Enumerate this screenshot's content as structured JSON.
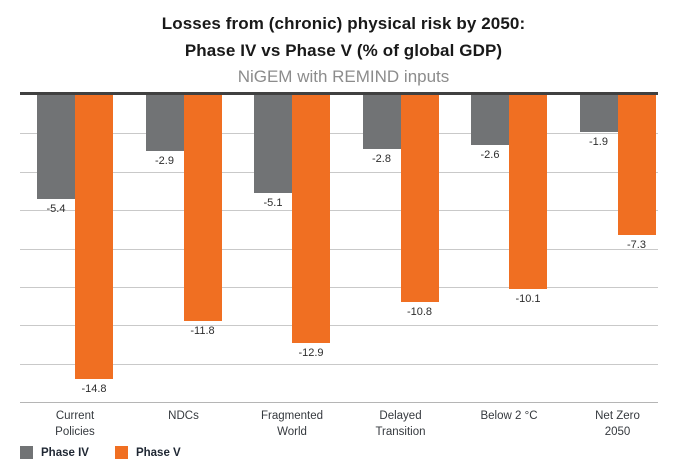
{
  "header": {
    "title_line1": "Losses from (chronic) physical risk by 2050:",
    "title_line2": "Phase IV vs Phase V (% of global GDP)",
    "subtitle": "NiGEM with REMIND inputs"
  },
  "chart_data": {
    "type": "bar",
    "title": "Losses from (chronic) physical risk by 2050: Phase IV vs Phase V (% of global GDP)",
    "subtitle": "NiGEM with REMIND inputs",
    "categories": [
      [
        "Current",
        "Policies"
      ],
      [
        "NDCs"
      ],
      [
        "Fragmented",
        "World"
      ],
      [
        "Delayed",
        "Transition"
      ],
      [
        "Below 2 °C"
      ],
      [
        "Net Zero",
        "2050"
      ]
    ],
    "series": [
      {
        "name": "Phase IV",
        "color": "#717375",
        "values": [
          -5.4,
          -2.9,
          -5.1,
          -2.8,
          -2.6,
          -1.9
        ]
      },
      {
        "name": "Phase V",
        "color": "#f06f22",
        "values": [
          -14.8,
          -11.8,
          -12.9,
          -10.8,
          -10.1,
          -7.3
        ]
      }
    ],
    "ylim": [
      0,
      -16
    ],
    "grid_step": 2,
    "grid": true,
    "value_labels": true,
    "legend_position": "bottom-left",
    "colors": {
      "grid": "#c9c9c9",
      "zero_line": "#404040",
      "axis_line": "#b5b5b5",
      "title_text": "#191919",
      "subtitle_text": "#8c8c8c",
      "label_text": "#35393e"
    }
  }
}
